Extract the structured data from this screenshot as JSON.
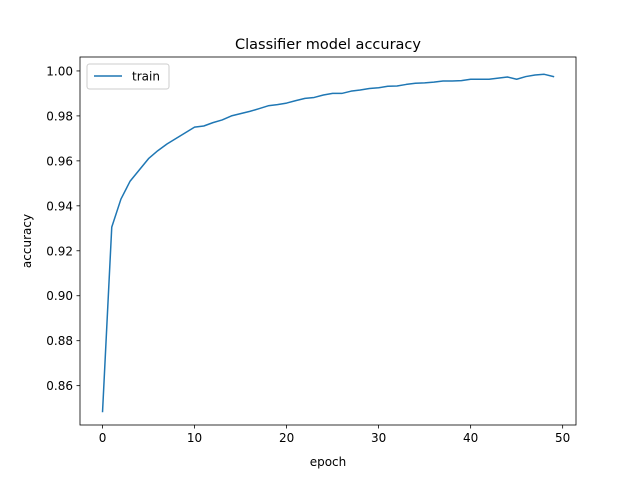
{
  "chart_data": {
    "type": "line",
    "title": "Classifier model accuracy",
    "xlabel": "epoch",
    "ylabel": "accuracy",
    "xlim": [
      -2.45,
      51.45
    ],
    "ylim": [
      0.8425,
      1.0062
    ],
    "x_ticks": [
      0,
      10,
      20,
      30,
      40,
      50
    ],
    "x_tick_labels": [
      "0",
      "10",
      "20",
      "30",
      "40",
      "50"
    ],
    "y_ticks": [
      0.86,
      0.88,
      0.9,
      0.92,
      0.94,
      0.96,
      0.98,
      1.0
    ],
    "y_tick_labels": [
      "0.86",
      "0.88",
      "0.90",
      "0.92",
      "0.94",
      "0.96",
      "0.98",
      "1.00"
    ],
    "grid": false,
    "legend_position": "upper-left",
    "x": [
      0,
      1,
      2,
      3,
      4,
      5,
      6,
      7,
      8,
      9,
      10,
      11,
      12,
      13,
      14,
      15,
      16,
      17,
      18,
      19,
      20,
      21,
      22,
      23,
      24,
      25,
      26,
      27,
      28,
      29,
      30,
      31,
      32,
      33,
      34,
      35,
      36,
      37,
      38,
      39,
      40,
      41,
      42,
      43,
      44,
      45,
      46,
      47,
      48,
      49
    ],
    "series": [
      {
        "name": "train",
        "color": "#1f77b4",
        "values": [
          0.8485,
          0.9305,
          0.943,
          0.951,
          0.956,
          0.961,
          0.9645,
          0.9675,
          0.97,
          0.9725,
          0.975,
          0.9755,
          0.977,
          0.9782,
          0.98,
          0.981,
          0.982,
          0.9832,
          0.9845,
          0.985,
          0.9857,
          0.9868,
          0.9878,
          0.9882,
          0.9893,
          0.99,
          0.99,
          0.991,
          0.9915,
          0.9922,
          0.9925,
          0.9932,
          0.9933,
          0.994,
          0.9945,
          0.9947,
          0.995,
          0.9955,
          0.9955,
          0.9957,
          0.9963,
          0.9963,
          0.9963,
          0.9968,
          0.9973,
          0.9963,
          0.9975,
          0.9982,
          0.9985,
          0.9975
        ]
      }
    ]
  }
}
